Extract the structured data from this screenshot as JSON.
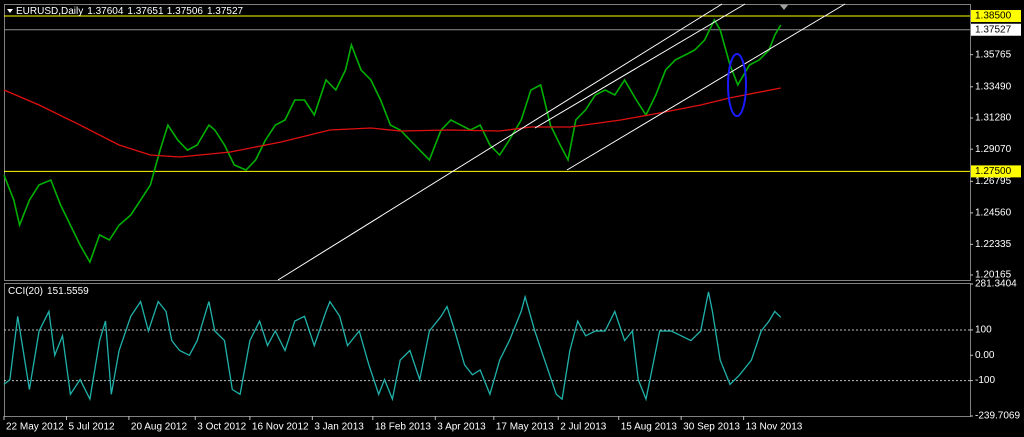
{
  "chart_data": [
    {
      "type": "line",
      "title": "EURUSD,Daily",
      "quote": [
        1.37604,
        1.37651,
        1.37506,
        1.37527
      ],
      "xlim": [
        0,
        495
      ],
      "ylim": [
        1.1981,
        1.3935
      ],
      "yticks": [
        1.35765,
        {
          "value": 1.3349,
          "label": "1.33490"
        },
        {
          "value": 1.3128,
          "label": "1.31280"
        },
        {
          "value": 1.2907,
          "label": "1.29070"
        },
        1.26795,
        {
          "value": 1.2456,
          "label": "1.24560"
        },
        1.22335,
        1.20165
      ],
      "hlines": [
        {
          "value": 1.385,
          "label": "1.38500",
          "color": "#ffff00"
        },
        {
          "value": 1.275,
          "label": "1.27500",
          "color": "#ffff00"
        }
      ],
      "bid_line": 1.37527,
      "series": [
        {
          "color": "#00b000",
          "x": [
            0,
            5,
            8,
            13,
            18,
            24,
            29,
            34,
            39,
            44,
            49,
            54,
            59,
            65,
            70,
            75,
            80,
            84,
            89,
            94,
            99,
            105,
            108,
            113,
            118,
            124,
            129,
            134,
            139,
            144,
            149,
            154,
            159,
            165,
            170,
            175,
            178,
            183,
            188,
            193,
            198,
            203,
            208,
            213,
            218,
            224,
            229,
            234,
            239,
            244,
            249,
            254,
            259,
            265,
            270,
            275,
            280,
            285,
            289,
            293,
            298,
            303,
            308,
            313,
            318,
            324,
            329,
            334,
            339,
            344,
            349,
            354,
            359,
            364,
            367,
            372,
            376,
            382,
            387,
            392,
            395,
            398
          ],
          "values": [
            1.2724,
            1.2547,
            1.237,
            1.2547,
            1.2654,
            1.2689,
            1.2512,
            1.237,
            1.2229,
            1.2108,
            1.23,
            1.2264,
            1.237,
            1.2441,
            1.2547,
            1.2654,
            1.2901,
            1.3078,
            1.2972,
            1.2901,
            1.2937,
            1.3078,
            1.3043,
            1.2937,
            1.2795,
            1.276,
            1.2831,
            1.2972,
            1.3078,
            1.3114,
            1.3255,
            1.3255,
            1.3149,
            1.3397,
            1.3326,
            1.3468,
            1.3645,
            1.3468,
            1.3397,
            1.3255,
            1.3078,
            1.3043,
            1.2972,
            1.2901,
            1.2831,
            1.3043,
            1.3114,
            1.3078,
            1.3043,
            1.3078,
            1.2937,
            1.2866,
            1.2972,
            1.3114,
            1.3326,
            1.3362,
            1.3078,
            1.2937,
            1.2831,
            1.3114,
            1.3185,
            1.3291,
            1.3326,
            1.3291,
            1.3397,
            1.3255,
            1.3149,
            1.3291,
            1.3468,
            1.3539,
            1.3574,
            1.3609,
            1.368,
            1.3822,
            1.3751,
            1.3503,
            1.3362,
            1.3503,
            1.3539,
            1.3609,
            1.3715,
            1.3786
          ]
        },
        {
          "color": "#e01010",
          "x": [
            0,
            18,
            39,
            59,
            75,
            90,
            116,
            142,
            167,
            188,
            203,
            229,
            254,
            270,
            290,
            316,
            336,
            357,
            372,
            398
          ],
          "values": [
            1.3326,
            1.322,
            1.3078,
            1.2937,
            1.2866,
            1.2852,
            1.2887,
            1.2958,
            1.3043,
            1.3057,
            1.3036,
            1.3043,
            1.3036,
            1.3064,
            1.3064,
            1.3114,
            1.3163,
            1.322,
            1.327,
            1.334
          ]
        }
      ]
    },
    {
      "type": "line",
      "title": "CCI(20)",
      "current": 151.5559,
      "xlim": [
        0,
        495
      ],
      "ylim": [
        -239.7069,
        281.3404
      ],
      "yticks": [
        281.3404,
        100,
        {
          "value": 0,
          "label": "0.00"
        },
        -100,
        -239.7069
      ],
      "levels": [
        100,
        -100
      ],
      "xticks": [
        {
          "value": 0,
          "label": "22 May 2012"
        },
        {
          "value": 32,
          "label": "5 Jul 2012"
        },
        {
          "value": 64,
          "label": "20 Aug 2012"
        },
        {
          "value": 98,
          "label": "3 Oct 2012"
        },
        {
          "value": 126,
          "label": "16 Nov 2012"
        },
        {
          "value": 158,
          "label": "3 Jan 2013"
        },
        {
          "value": 189,
          "label": "18 Feb 2013"
        },
        {
          "value": 221,
          "label": "3 Apr 2013"
        },
        {
          "value": 251,
          "label": "17 May 2013"
        },
        {
          "value": 284,
          "label": "2 Jul 2013"
        },
        {
          "value": 315,
          "label": "15 Aug 2013"
        },
        {
          "value": 347,
          "label": "30 Sep 2013"
        },
        {
          "value": 379,
          "label": "13 Nov 2013"
        }
      ],
      "series": [
        {
          "color": "#20b2aa",
          "x": [
            0,
            3,
            7,
            9,
            13,
            18,
            23,
            26,
            30,
            34,
            39,
            44,
            49,
            52,
            55,
            59,
            65,
            70,
            74,
            79,
            83,
            86,
            90,
            95,
            99,
            105,
            108,
            113,
            117,
            121,
            126,
            131,
            135,
            139,
            144,
            149,
            154,
            159,
            165,
            167,
            172,
            176,
            182,
            187,
            192,
            195,
            199,
            203,
            208,
            213,
            218,
            224,
            227,
            231,
            236,
            240,
            244,
            249,
            254,
            259,
            265,
            267,
            272,
            277,
            283,
            286,
            290,
            294,
            298,
            303,
            308,
            313,
            318,
            322,
            325,
            329,
            332,
            336,
            342,
            347,
            352,
            357,
            361,
            363,
            367,
            372,
            377,
            383,
            388,
            392,
            395,
            398
          ],
          "values": [
            -115,
            -96,
            154,
            58,
            -135,
            96,
            173,
            0,
            77,
            -154,
            -96,
            -173,
            58,
            135,
            -154,
            19,
            154,
            212,
            96,
            212,
            173,
            58,
            19,
            0,
            58,
            212,
            96,
            58,
            -135,
            -154,
            58,
            135,
            38,
            96,
            19,
            135,
            154,
            38,
            173,
            212,
            154,
            38,
            96,
            -38,
            -154,
            -96,
            -173,
            -19,
            19,
            -96,
            96,
            154,
            192,
            96,
            -38,
            -77,
            -58,
            -154,
            -19,
            58,
            173,
            231,
            96,
            -19,
            -154,
            -173,
            19,
            135,
            77,
            96,
            96,
            173,
            58,
            96,
            -96,
            -173,
            -58,
            96,
            96,
            77,
            58,
            96,
            250,
            173,
            -19,
            -115,
            -77,
            -19,
            96,
            135,
            173,
            150
          ]
        }
      ]
    }
  ]
}
